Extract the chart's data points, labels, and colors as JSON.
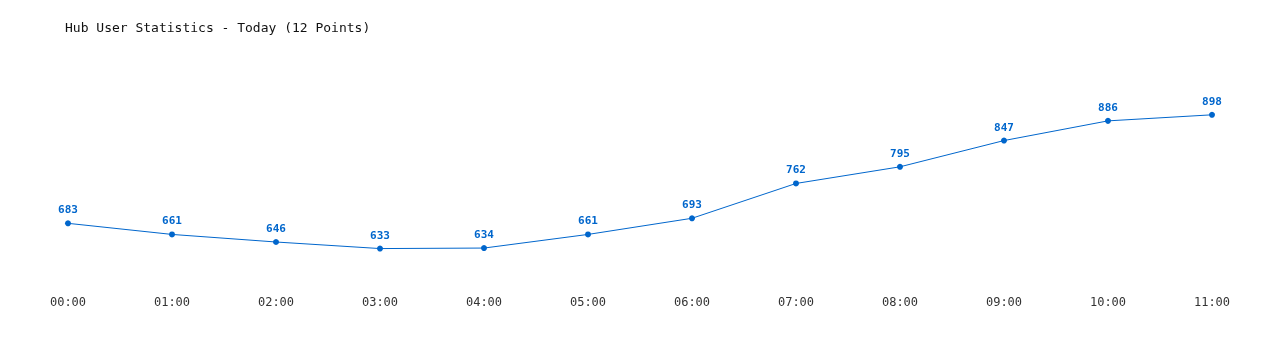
{
  "chart_data": {
    "type": "line",
    "title": "Hub User Statistics - Today (12 Points)",
    "categories": [
      "00:00",
      "01:00",
      "02:00",
      "03:00",
      "04:00",
      "05:00",
      "06:00",
      "07:00",
      "08:00",
      "09:00",
      "10:00",
      "11:00"
    ],
    "series": [
      {
        "color": "#0066cc",
        "values": [
          683,
          661,
          646,
          633,
          634,
          661,
          693,
          762,
          795,
          847,
          886,
          898
        ]
      }
    ],
    "data_labels": true,
    "marker": "circle",
    "line_style": "solid"
  }
}
